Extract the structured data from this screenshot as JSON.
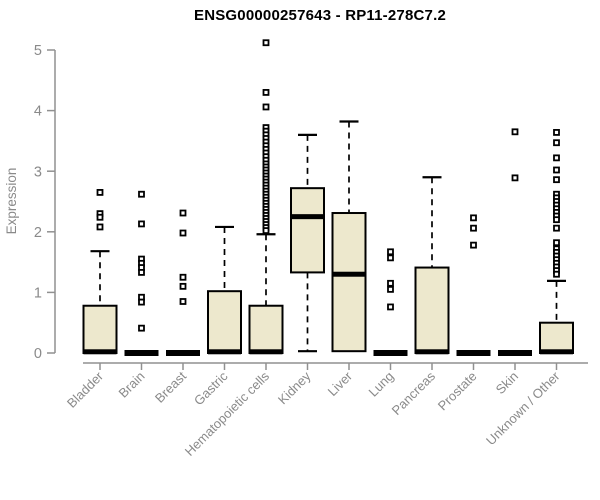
{
  "page": {
    "background": "#ffffff"
  },
  "chart_data": {
    "type": "boxplot",
    "title": "ENSG00000257643 - RP11-278C7.2",
    "ylabel": "Expression",
    "xlabel": "",
    "ylim": [
      0,
      5
    ],
    "yticks": [
      0,
      1,
      2,
      3,
      4,
      5
    ],
    "grid": false,
    "legend": false,
    "colors": {
      "box_fill": "#EDE8CD",
      "box_stroke": "#000000",
      "median": "#000000",
      "whisker": "#000000",
      "outlier_stroke": "#000000",
      "outlier_fill": "#ffffff",
      "axis": "#909090",
      "tick_label": "#8a8a8a",
      "title": "#000000"
    },
    "categories": [
      "Bladder",
      "Brain",
      "Breast",
      "Gastric",
      "Hematopoietic cells",
      "Kidney",
      "Liver",
      "Lung",
      "Pancreas",
      "Prostate",
      "Skin",
      "Unknown / Other"
    ],
    "boxes": [
      {
        "category": "Bladder",
        "q1": 0,
        "median": 0.02,
        "q3": 0.78,
        "whisker_low": 0,
        "whisker_high": 1.68,
        "outliers": [
          2.65,
          2.3,
          2.24,
          2.08
        ]
      },
      {
        "category": "Brain",
        "q1": 0,
        "median": 0,
        "q3": 0,
        "whisker_low": 0,
        "whisker_high": 0,
        "outliers": [
          2.62,
          2.13,
          1.55,
          1.48,
          1.41,
          1.33,
          0.92,
          0.84,
          0.41
        ]
      },
      {
        "category": "Breast",
        "q1": 0,
        "median": 0,
        "q3": 0,
        "whisker_low": 0,
        "whisker_high": 0,
        "outliers": [
          2.31,
          1.98,
          1.25,
          1.1,
          0.85
        ]
      },
      {
        "category": "Gastric",
        "q1": 0,
        "median": 0.02,
        "q3": 1.02,
        "whisker_low": 0,
        "whisker_high": 2.08,
        "outliers": []
      },
      {
        "category": "Hematopoietic cells",
        "q1": 0,
        "median": 0.02,
        "q3": 0.78,
        "whisker_low": 0,
        "whisker_high": 1.96,
        "outliers": [
          5.12,
          4.3,
          4.06,
          3.72,
          3.66,
          3.6,
          3.54,
          3.48,
          3.42,
          3.36,
          3.3,
          3.24,
          3.18,
          3.12,
          3.07,
          3.02,
          2.97,
          2.92,
          2.87,
          2.82,
          2.77,
          2.72,
          2.67,
          2.62,
          2.57,
          2.52,
          2.47,
          2.42,
          2.37,
          2.32,
          2.27,
          2.22,
          2.17,
          2.12,
          2.07,
          2.02
        ]
      },
      {
        "category": "Kidney",
        "q1": 1.33,
        "median": 2.25,
        "q3": 2.72,
        "whisker_low": 0.03,
        "whisker_high": 3.6,
        "outliers": []
      },
      {
        "category": "Liver",
        "q1": 0.03,
        "median": 1.3,
        "q3": 2.31,
        "whisker_low": 0.03,
        "whisker_high": 3.82,
        "outliers": []
      },
      {
        "category": "Lung",
        "q1": 0,
        "median": 0,
        "q3": 0,
        "whisker_low": 0,
        "whisker_high": 0,
        "outliers": [
          1.67,
          1.57,
          1.15,
          1.05,
          0.76
        ]
      },
      {
        "category": "Pancreas",
        "q1": 0,
        "median": 0.02,
        "q3": 1.41,
        "whisker_low": 0,
        "whisker_high": 2.9,
        "outliers": []
      },
      {
        "category": "Prostate",
        "q1": 0,
        "median": 0,
        "q3": 0,
        "whisker_low": 0,
        "whisker_high": 0,
        "outliers": [
          2.23,
          2.06,
          1.78
        ]
      },
      {
        "category": "Skin",
        "q1": 0,
        "median": 0,
        "q3": 0,
        "whisker_low": 0,
        "whisker_high": 0,
        "outliers": [
          3.65,
          2.89
        ]
      },
      {
        "category": "Unknown / Other",
        "q1": 0,
        "median": 0.02,
        "q3": 0.5,
        "whisker_low": 0,
        "whisker_high": 1.19,
        "outliers": [
          3.64,
          3.47,
          3.22,
          3.02,
          2.86,
          2.62,
          2.56,
          2.5,
          2.44,
          2.38,
          2.32,
          2.26,
          2.2,
          2.06,
          1.82,
          1.72,
          1.66,
          1.6,
          1.54,
          1.48,
          1.42,
          1.36,
          1.3
        ]
      }
    ]
  }
}
